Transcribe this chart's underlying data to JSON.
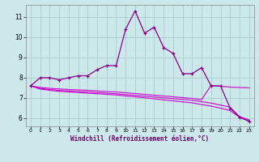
{
  "background_color": "#cce8ea",
  "grid_color": "#aacccc",
  "line_color_main": "#cc00cc",
  "line_color_dark": "#880088",
  "xlabel": "Windchill (Refroidissement éolien,°C)",
  "ylabel_ticks": [
    6,
    7,
    8,
    9,
    10,
    11
  ],
  "xlim": [
    -0.5,
    23.5
  ],
  "ylim": [
    5.6,
    11.6
  ],
  "x_ticks": [
    0,
    1,
    2,
    3,
    4,
    5,
    6,
    7,
    8,
    9,
    10,
    11,
    12,
    13,
    14,
    15,
    16,
    17,
    18,
    19,
    20,
    21,
    22,
    23
  ],
  "series1_x": [
    0,
    1,
    2,
    3,
    4,
    5,
    6,
    7,
    8,
    9,
    10,
    11,
    12,
    13,
    14,
    15,
    16,
    17,
    18,
    19,
    20,
    21,
    22,
    23
  ],
  "series1_y": [
    7.6,
    8.0,
    8.0,
    7.9,
    8.0,
    8.1,
    8.1,
    8.4,
    8.6,
    8.6,
    10.4,
    11.3,
    10.2,
    10.5,
    9.5,
    9.2,
    8.2,
    8.2,
    8.5,
    7.6,
    7.6,
    6.5,
    6.05,
    5.85
  ],
  "series2_x": [
    0,
    1,
    2,
    3,
    4,
    5,
    6,
    7,
    8,
    9,
    10,
    11,
    12,
    13,
    14,
    15,
    16,
    17,
    18,
    19,
    20,
    21,
    22,
    23
  ],
  "series2_y": [
    7.6,
    7.52,
    7.48,
    7.45,
    7.42,
    7.4,
    7.38,
    7.35,
    7.32,
    7.3,
    7.26,
    7.22,
    7.18,
    7.14,
    7.1,
    7.06,
    7.02,
    6.98,
    6.92,
    7.62,
    7.58,
    7.54,
    7.52,
    7.5
  ],
  "series3_x": [
    0,
    1,
    2,
    3,
    4,
    5,
    6,
    7,
    8,
    9,
    10,
    11,
    12,
    13,
    14,
    15,
    16,
    17,
    18,
    19,
    20,
    21,
    22,
    23
  ],
  "series3_y": [
    7.6,
    7.48,
    7.42,
    7.38,
    7.35,
    7.32,
    7.3,
    7.27,
    7.24,
    7.21,
    7.17,
    7.13,
    7.09,
    7.05,
    7.01,
    6.97,
    6.93,
    6.89,
    6.82,
    6.75,
    6.65,
    6.55,
    6.08,
    5.92
  ],
  "series4_x": [
    0,
    1,
    2,
    3,
    4,
    5,
    6,
    7,
    8,
    9,
    10,
    11,
    12,
    13,
    14,
    15,
    16,
    17,
    18,
    19,
    20,
    21,
    22,
    23
  ],
  "series4_y": [
    7.6,
    7.44,
    7.38,
    7.33,
    7.3,
    7.27,
    7.24,
    7.21,
    7.18,
    7.15,
    7.1,
    7.06,
    7.01,
    6.96,
    6.91,
    6.86,
    6.81,
    6.76,
    6.68,
    6.6,
    6.5,
    6.38,
    6.05,
    5.88
  ]
}
